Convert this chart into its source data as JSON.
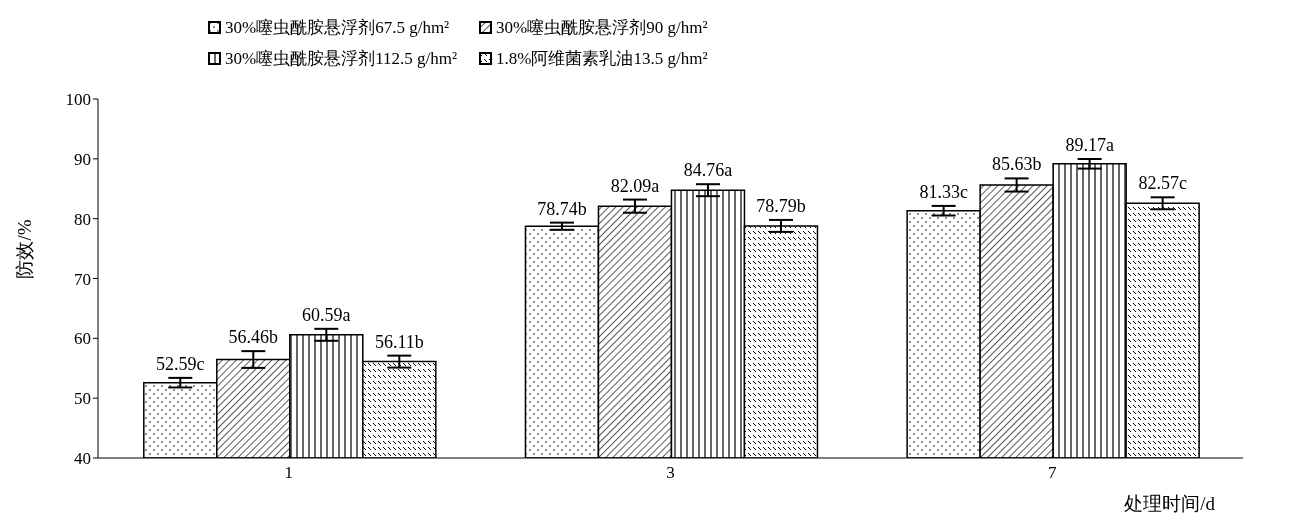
{
  "chart_data": {
    "type": "bar",
    "xlabel": "处理时间/d",
    "ylabel": "防效/%",
    "categories": [
      "1",
      "3",
      "7"
    ],
    "series": [
      {
        "name": "30%噻虫酰胺悬浮剂67.5 g/hm²",
        "color": "#000000",
        "values": [
          52.59,
          78.74,
          81.33
        ],
        "errors": [
          0.8,
          0.6,
          0.8
        ],
        "value_labels": [
          "52.59c",
          "78.74b",
          "81.33c"
        ]
      },
      {
        "name": "30%噻虫酰胺悬浮剂90 g/hm²",
        "color": "#000000",
        "values": [
          56.46,
          82.09,
          85.63
        ],
        "errors": [
          1.4,
          1.1,
          1.1
        ],
        "value_labels": [
          "56.46b",
          "82.09a",
          "85.63b"
        ]
      },
      {
        "name": "30%噻虫酰胺悬浮剂112.5 g/hm²",
        "color": "#000000",
        "values": [
          60.59,
          84.76,
          89.17
        ],
        "errors": [
          1.0,
          1.0,
          0.8
        ],
        "value_labels": [
          "60.59a",
          "84.76a",
          "89.17a"
        ]
      },
      {
        "name": "1.8%阿维菌素乳油13.5  g/hm²",
        "color": "#000000",
        "values": [
          56.11,
          78.79,
          82.57
        ],
        "errors": [
          1.0,
          1.0,
          1.0
        ],
        "value_labels": [
          "56.11b",
          "78.79b",
          "82.57c"
        ]
      }
    ],
    "ylim": [
      40,
      100
    ],
    "yticks": [
      40,
      50,
      60,
      70,
      80,
      90,
      100
    ],
    "grid": false,
    "legend": "top"
  }
}
